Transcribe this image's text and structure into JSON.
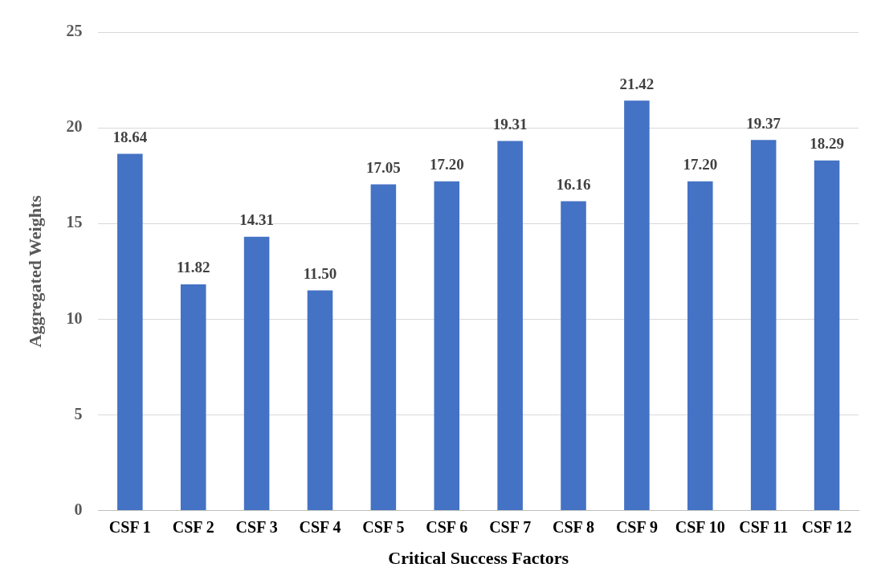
{
  "chart_data": {
    "type": "bar",
    "xlabel": "Critical Success Factors",
    "ylabel": "Aggregated Weights",
    "categories": [
      "CSF 1",
      "CSF 2",
      "CSF 3",
      "CSF 4",
      "CSF 5",
      "CSF 6",
      "CSF 7",
      "CSF 8",
      "CSF 9",
      "CSF 10",
      "CSF 11",
      "CSF 12"
    ],
    "values": [
      18.64,
      11.82,
      14.31,
      11.5,
      17.05,
      17.2,
      19.31,
      16.16,
      21.42,
      17.2,
      19.37,
      18.29
    ],
    "value_labels": [
      "18.64",
      "11.82",
      "14.31",
      "11.50",
      "17.05",
      "17.20",
      "19.31",
      "16.16",
      "21.42",
      "17.20",
      "19.37",
      "18.29"
    ],
    "color": "#4472c4",
    "ylim": [
      0,
      25
    ],
    "yticks": [
      0,
      5,
      10,
      15,
      20,
      25
    ],
    "grid": "y",
    "legend": false
  }
}
